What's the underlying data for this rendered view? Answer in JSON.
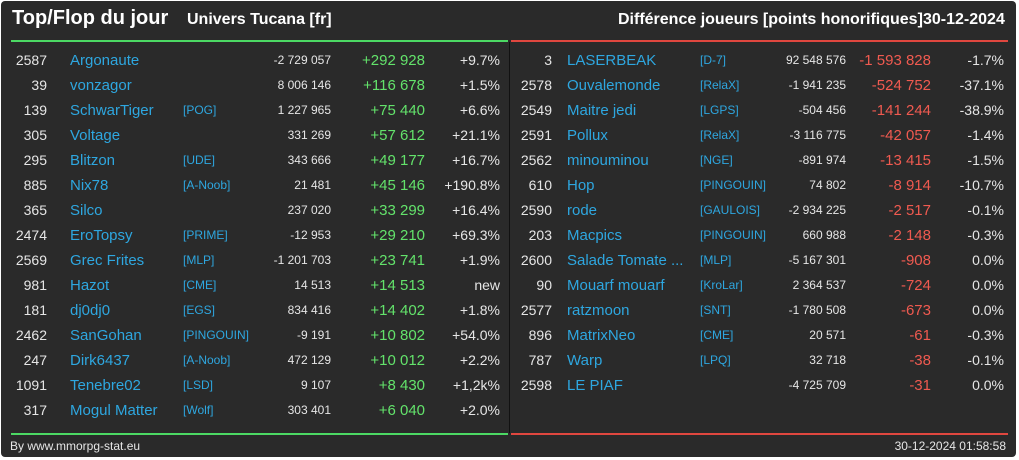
{
  "header": {
    "title": "Top/Flop du jour",
    "universe": "Univers Tucana [fr]",
    "metric": "Différence joueurs [points honorifiques]",
    "date": "30-12-2024"
  },
  "colors": {
    "top_accent": "#4cd964",
    "flop_accent": "#e0473f",
    "name_link": "#2ea7e0",
    "background": "#2a2a2a"
  },
  "top": [
    {
      "rank": "2587",
      "name": "Argonaute",
      "alliance": "",
      "total": "-2 729 057",
      "diff": "+292 928",
      "pct": "+9.7%"
    },
    {
      "rank": "39",
      "name": "vonzagor",
      "alliance": "",
      "total": "8 006 146",
      "diff": "+116 678",
      "pct": "+1.5%"
    },
    {
      "rank": "139",
      "name": "SchwarTiger",
      "alliance": "[POG]",
      "total": "1 227 965",
      "diff": "+75 440",
      "pct": "+6.6%"
    },
    {
      "rank": "305",
      "name": "Voltage",
      "alliance": "",
      "total": "331 269",
      "diff": "+57 612",
      "pct": "+21.1%"
    },
    {
      "rank": "295",
      "name": "Blitzon",
      "alliance": "[UDE]",
      "total": "343 666",
      "diff": "+49 177",
      "pct": "+16.7%"
    },
    {
      "rank": "885",
      "name": "Nix78",
      "alliance": "[A-Noob]",
      "total": "21 481",
      "diff": "+45 146",
      "pct": "+190.8%"
    },
    {
      "rank": "365",
      "name": "Silco",
      "alliance": "",
      "total": "237 020",
      "diff": "+33 299",
      "pct": "+16.4%"
    },
    {
      "rank": "2474",
      "name": "EroTopsy",
      "alliance": "[PRIME]",
      "total": "-12 953",
      "diff": "+29 210",
      "pct": "+69.3%"
    },
    {
      "rank": "2569",
      "name": "Grec Frites",
      "alliance": "[MLP]",
      "total": "-1 201 703",
      "diff": "+23 741",
      "pct": "+1.9%"
    },
    {
      "rank": "981",
      "name": "Hazot",
      "alliance": "[CME]",
      "total": "14 513",
      "diff": "+14 513",
      "pct": "new"
    },
    {
      "rank": "181",
      "name": "dj0dj0",
      "alliance": "[EGS]",
      "total": "834 416",
      "diff": "+14 402",
      "pct": "+1.8%"
    },
    {
      "rank": "2462",
      "name": "SanGohan",
      "alliance": "[PINGOUIN]",
      "total": "-9 191",
      "diff": "+10 802",
      "pct": "+54.0%"
    },
    {
      "rank": "247",
      "name": "Dirk6437",
      "alliance": "[A-Noob]",
      "total": "472 129",
      "diff": "+10 012",
      "pct": "+2.2%"
    },
    {
      "rank": "1091",
      "name": "Tenebre02",
      "alliance": "[LSD]",
      "total": "9 107",
      "diff": "+8 430",
      "pct": "+1,2k%"
    },
    {
      "rank": "317",
      "name": "Mogul Matter",
      "alliance": "[Wolf]",
      "total": "303 401",
      "diff": "+6 040",
      "pct": "+2.0%"
    }
  ],
  "flop": [
    {
      "rank": "3",
      "name": "LASERBEAK",
      "alliance": "[D-7]",
      "total": "92 548 576",
      "diff": "-1 593 828",
      "pct": "-1.7%"
    },
    {
      "rank": "2578",
      "name": "Ouvalemonde",
      "alliance": "[RelaX]",
      "total": "-1 941 235",
      "diff": "-524 752",
      "pct": "-37.1%"
    },
    {
      "rank": "2549",
      "name": "Maitre jedi",
      "alliance": "[LGPS]",
      "total": "-504 456",
      "diff": "-141 244",
      "pct": "-38.9%"
    },
    {
      "rank": "2591",
      "name": "Pollux",
      "alliance": "[RelaX]",
      "total": "-3 116 775",
      "diff": "-42 057",
      "pct": "-1.4%"
    },
    {
      "rank": "2562",
      "name": "minouminou",
      "alliance": "[NGE]",
      "total": "-891 974",
      "diff": "-13 415",
      "pct": "-1.5%"
    },
    {
      "rank": "610",
      "name": "Hop",
      "alliance": "[PINGOUIN]",
      "total": "74 802",
      "diff": "-8 914",
      "pct": "-10.7%"
    },
    {
      "rank": "2590",
      "name": "rode",
      "alliance": "[GAULOIS]",
      "total": "-2 934 225",
      "diff": "-2 517",
      "pct": "-0.1%"
    },
    {
      "rank": "203",
      "name": "Macpics",
      "alliance": "[PINGOUIN]",
      "total": "660 988",
      "diff": "-2 148",
      "pct": "-0.3%"
    },
    {
      "rank": "2600",
      "name": "Salade Tomate ...",
      "alliance": "[MLP]",
      "total": "-5 167 301",
      "diff": "-908",
      "pct": "0.0%"
    },
    {
      "rank": "90",
      "name": "Mouarf mouarf",
      "alliance": "[KroLar]",
      "total": "2 364 537",
      "diff": "-724",
      "pct": "0.0%"
    },
    {
      "rank": "2577",
      "name": "ratzmoon",
      "alliance": "[SNT]",
      "total": "-1 780 508",
      "diff": "-673",
      "pct": "0.0%"
    },
    {
      "rank": "896",
      "name": "MatrixNeo",
      "alliance": "[CME]",
      "total": "20 571",
      "diff": "-61",
      "pct": "-0.3%"
    },
    {
      "rank": "787",
      "name": "Warp",
      "alliance": "[LPQ]",
      "total": "32 718",
      "diff": "-38",
      "pct": "-0.1%"
    },
    {
      "rank": "2598",
      "name": "LE PIAF",
      "alliance": "",
      "total": "-4 725 709",
      "diff": "-31",
      "pct": "0.0%"
    }
  ],
  "footer": {
    "source": "By www.mmorpg-stat.eu",
    "timestamp": "30-12-2024 01:58:58"
  }
}
